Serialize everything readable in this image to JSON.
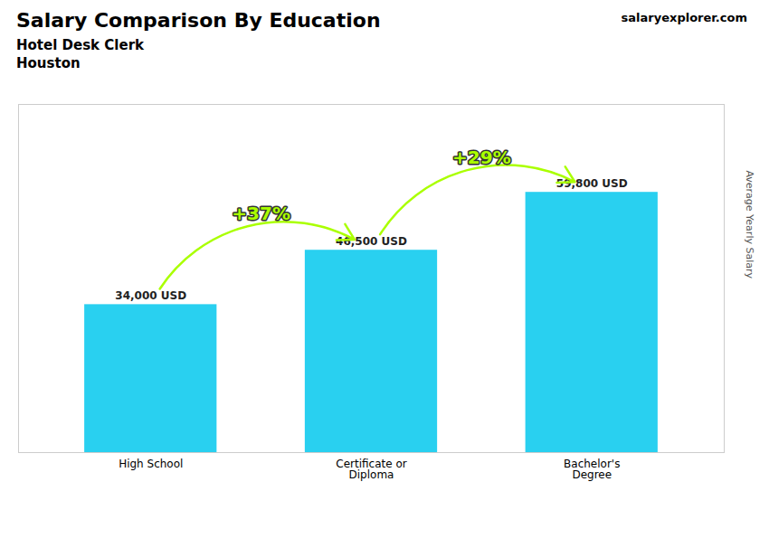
{
  "chart_data": {
    "type": "bar",
    "title": "Salary Comparison By Education",
    "subtitle": [
      "Hotel Desk Clerk",
      "Houston"
    ],
    "caption": "salaryexplorer.com",
    "ylabel": "Average Yearly Salary",
    "categories": [
      "High School",
      "Certificate or\nDiploma",
      "Bachelor's\nDegree"
    ],
    "values": [
      34000,
      46500,
      59800
    ],
    "value_labels": [
      "34,000 USD",
      "46,500 USD",
      "59,800 USD"
    ],
    "data_labels": true,
    "annotations": [
      {
        "text": "+37%",
        "from": "High School",
        "to": "Certificate or\nDiploma",
        "color": "#aaff00"
      },
      {
        "text": "+29%",
        "from": "Certificate or\nDiploma",
        "to": "Bachelor's\nDegree",
        "color": "#aaff00"
      }
    ],
    "color": "#29d0f0",
    "ylim": [
      0,
      80000
    ],
    "tick_labels": "x",
    "grid": false
  }
}
